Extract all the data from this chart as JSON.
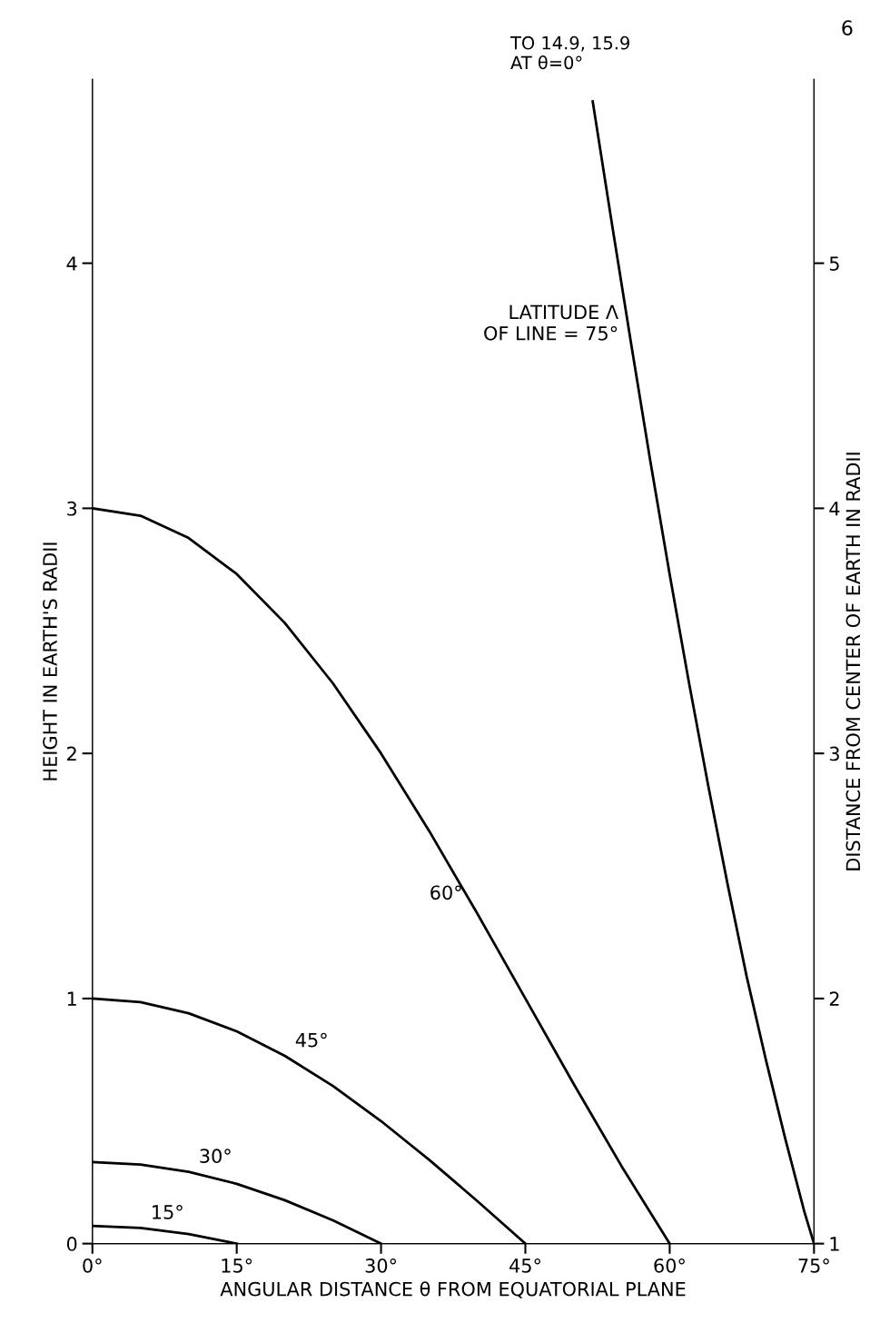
{
  "chart_data": {
    "type": "line",
    "xlabel": "ANGULAR DISTANCE θ FROM EQUATORIAL PLANE",
    "ylabel": "HEIGHT IN EARTH'S RADII",
    "y2label": "DISTANCE FROM CENTER OF EARTH IN RADII",
    "xlim": [
      0,
      75
    ],
    "xticks": [
      {
        "value": 0,
        "label": "0°"
      },
      {
        "value": 15,
        "label": "15°"
      },
      {
        "value": 30,
        "label": "30°"
      },
      {
        "value": 45,
        "label": "45°"
      },
      {
        "value": 60,
        "label": "60°"
      },
      {
        "value": 75,
        "label": "75°"
      }
    ],
    "ylim": [
      0,
      4.75
    ],
    "yticks": [
      0,
      1,
      2,
      3,
      4
    ],
    "y2lim": [
      1,
      5.75
    ],
    "y2ticks": [
      1,
      2,
      3,
      4,
      5
    ],
    "grid": false,
    "marker": "none",
    "line_style": "solid",
    "series": [
      {
        "name": "15°",
        "color": "#000000",
        "x": [
          0,
          5,
          10,
          15
        ],
        "values": [
          0.072,
          0.064,
          0.039,
          0
        ]
      },
      {
        "name": "30°",
        "color": "#000000",
        "x": [
          0,
          5,
          10,
          15,
          20,
          25,
          30
        ],
        "values": [
          0.333,
          0.323,
          0.293,
          0.244,
          0.177,
          0.095,
          0
        ]
      },
      {
        "name": "45°",
        "color": "#000000",
        "x": [
          0,
          5,
          10,
          15,
          20,
          25,
          30,
          35,
          40,
          45
        ],
        "values": [
          1,
          0.985,
          0.94,
          0.866,
          0.766,
          0.643,
          0.5,
          0.342,
          0.174,
          0
        ]
      },
      {
        "name": "60°",
        "color": "#000000",
        "x": [
          0,
          5,
          10,
          15,
          20,
          25,
          30,
          35,
          40,
          45,
          50,
          55,
          60
        ],
        "values": [
          3,
          2.97,
          2.879,
          2.732,
          2.532,
          2.286,
          2,
          1.684,
          1.347,
          1,
          0.653,
          0.316,
          0
        ]
      },
      {
        "name": "LATITUDE Λ\nOF LINE = 75°",
        "color": "#000000",
        "x": [
          52,
          54,
          56,
          58,
          60,
          62,
          64,
          66,
          68,
          70,
          72,
          74,
          75
        ],
        "values": [
          4.66,
          4.16,
          3.67,
          3.19,
          2.73,
          2.29,
          1.87,
          1.47,
          1.09,
          0.75,
          0.43,
          0.13,
          0
        ]
      }
    ],
    "annotations": [
      "TO 14.9, 15.9\nAT θ=0°",
      "6"
    ]
  }
}
